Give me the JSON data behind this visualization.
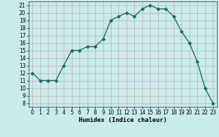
{
  "x": [
    0,
    1,
    2,
    3,
    4,
    5,
    6,
    7,
    8,
    9,
    10,
    11,
    12,
    13,
    14,
    15,
    16,
    17,
    18,
    19,
    20,
    21,
    22,
    23
  ],
  "y": [
    12,
    11,
    11,
    11,
    13,
    15,
    15,
    15.5,
    15.5,
    16.5,
    19,
    19.5,
    20,
    19.5,
    20.5,
    21,
    20.5,
    20.5,
    19.5,
    17.5,
    16,
    13.5,
    10,
    8
  ],
  "line_color": "#1a6b5a",
  "marker": "D",
  "marker_size": 2.5,
  "bg_color": "#c8ecea",
  "grid_color": "#c4a8a8",
  "xlabel": "Humidex (Indice chaleur)",
  "xlim": [
    -0.5,
    23.5
  ],
  "ylim": [
    7.5,
    21.5
  ],
  "yticks": [
    8,
    9,
    10,
    11,
    12,
    13,
    14,
    15,
    16,
    17,
    18,
    19,
    20,
    21
  ],
  "xticks": [
    0,
    1,
    2,
    3,
    4,
    5,
    6,
    7,
    8,
    9,
    10,
    11,
    12,
    13,
    14,
    15,
    16,
    17,
    18,
    19,
    20,
    21,
    22,
    23
  ],
  "tick_fontsize": 5.5,
  "xlabel_fontsize": 6.5,
  "line_width": 1.0
}
